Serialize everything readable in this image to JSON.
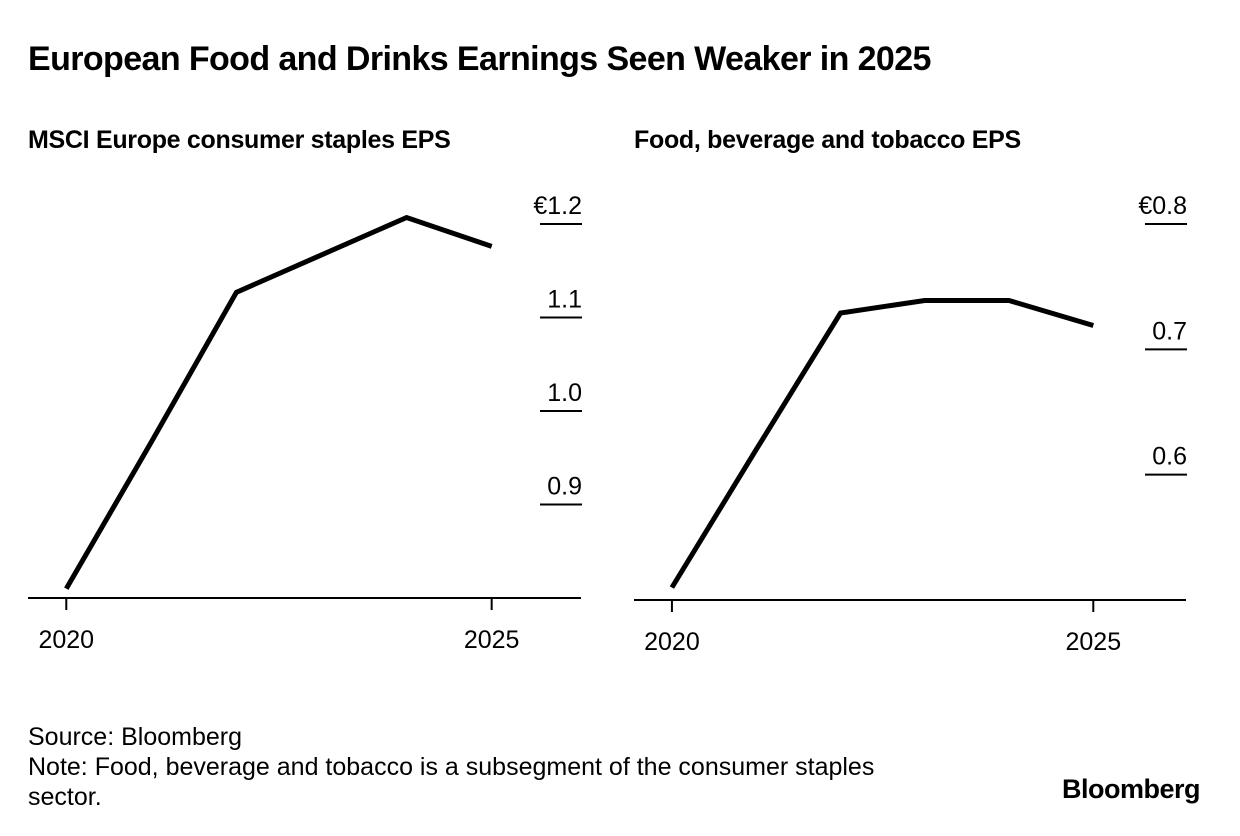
{
  "title": "European Food and Drinks Earnings Seen Weaker in 2025",
  "footer": {
    "source": "Source: Bloomberg",
    "note": "Note: Food, beverage and tobacco is a subsegment of the consumer staples sector."
  },
  "logo": "Bloomberg",
  "colors": {
    "line": "#000000",
    "text": "#000000",
    "background": "#ffffff"
  },
  "chart_data": [
    {
      "type": "line",
      "title": "MSCI Europe consumer staples EPS",
      "x": [
        2020,
        2021,
        2022,
        2023,
        2024,
        2025
      ],
      "values": [
        0.81,
        0.967,
        1.127,
        1.167,
        1.207,
        1.176
      ],
      "x_tick_labels": [
        "2020",
        "2025"
      ],
      "x_ticks": [
        2020,
        2025
      ],
      "y_ticks": [
        0.9,
        1.0,
        1.1,
        1.2
      ],
      "y_tick_labels": [
        "0.9",
        "1.0",
        "1.1",
        "€1.2"
      ],
      "ylim": [
        0.8,
        1.2
      ],
      "xlim": [
        2019.55,
        2026.05
      ],
      "xlabel": "",
      "ylabel": ""
    },
    {
      "type": "line",
      "title": "Food, beverage and tobacco EPS",
      "x": [
        2020,
        2021,
        2022,
        2023,
        2024,
        2025
      ],
      "values": [
        0.51,
        0.62,
        0.729,
        0.739,
        0.739,
        0.719
      ],
      "x_tick_labels": [
        "2020",
        "2025"
      ],
      "x_ticks": [
        2020,
        2025
      ],
      "y_ticks": [
        0.6,
        0.7,
        0.8
      ],
      "y_tick_labels": [
        "0.6",
        "0.7",
        "€0.8"
      ],
      "ylim": [
        0.5,
        0.8
      ],
      "xlim": [
        2019.55,
        2026.1
      ],
      "xlabel": "",
      "ylabel": ""
    }
  ]
}
